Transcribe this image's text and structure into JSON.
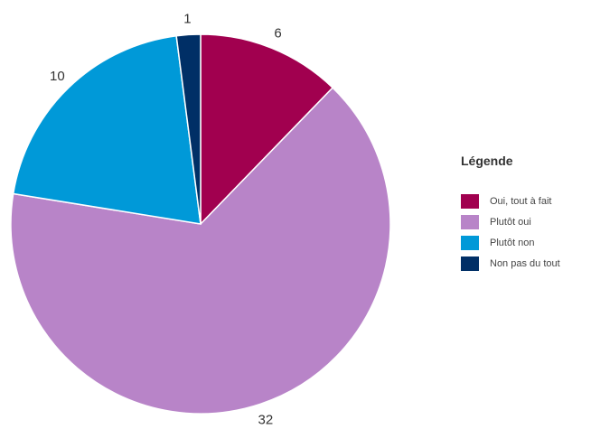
{
  "chart_data": {
    "type": "pie",
    "categories": [
      "Oui, tout à fait",
      "Plutôt oui",
      "Plutôt non",
      "Non pas du tout"
    ],
    "values": [
      6,
      32,
      10,
      1
    ],
    "colors": [
      "#a1004f",
      "#b884c8",
      "#0099d8",
      "#002f66"
    ],
    "slice_labels": [
      "6",
      "32",
      "10",
      "1"
    ],
    "legend_title": "Légende",
    "legend_position": "right"
  }
}
